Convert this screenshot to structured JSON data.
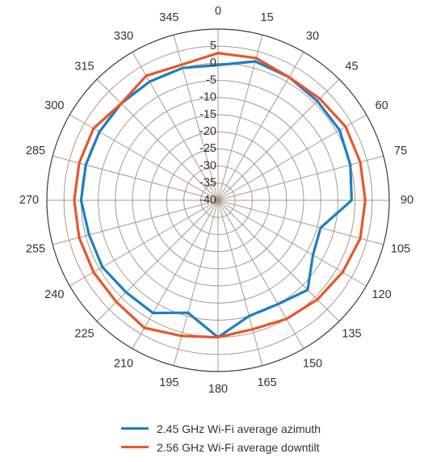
{
  "chart_data": {
    "type": "polar-line",
    "angle_ticks": [
      "0",
      "15",
      "30",
      "45",
      "60",
      "75",
      "90",
      "105",
      "120",
      "135",
      "150",
      "165",
      "180",
      "195",
      "210",
      "225",
      "240",
      "255",
      "270",
      "285",
      "300",
      "315",
      "330",
      "345"
    ],
    "radial_ticks": [
      "5",
      "0",
      "-5",
      "-10",
      "-15",
      "-20",
      "-25",
      "-30",
      "-35",
      "-40"
    ],
    "radial_range": [
      -40,
      10
    ],
    "grid": true,
    "legend_position": "bottom",
    "series": [
      {
        "name": "2.45 GHz Wi-Fi average azimuth",
        "color": "#1f7ec0",
        "angles": [
          0,
          15,
          30,
          45,
          60,
          75,
          90,
          105,
          120,
          135,
          150,
          165,
          180,
          195,
          210,
          225,
          240,
          255,
          270,
          285,
          300,
          315,
          330,
          345
        ],
        "values": [
          -0.5,
          2,
          1.5,
          1,
          1,
          0,
          -1,
          -9,
          -8,
          -3,
          -5,
          -5,
          0,
          -6,
          -2,
          -2,
          -1,
          -1,
          0,
          0,
          0,
          0,
          0,
          0
        ]
      },
      {
        "name": "2.56 GHz Wi-Fi average downtilt",
        "color": "#e8562a",
        "angles": [
          0,
          15,
          30,
          45,
          60,
          75,
          90,
          105,
          120,
          135,
          150,
          165,
          180,
          195,
          210,
          225,
          240,
          255,
          270,
          285,
          300,
          315,
          330,
          345
        ],
        "values": [
          3,
          3,
          1.5,
          2,
          3,
          3,
          3,
          3,
          2,
          1,
          0,
          -1,
          0,
          1,
          3,
          2,
          2,
          2,
          2,
          2,
          2,
          0,
          2,
          1
        ]
      }
    ]
  }
}
